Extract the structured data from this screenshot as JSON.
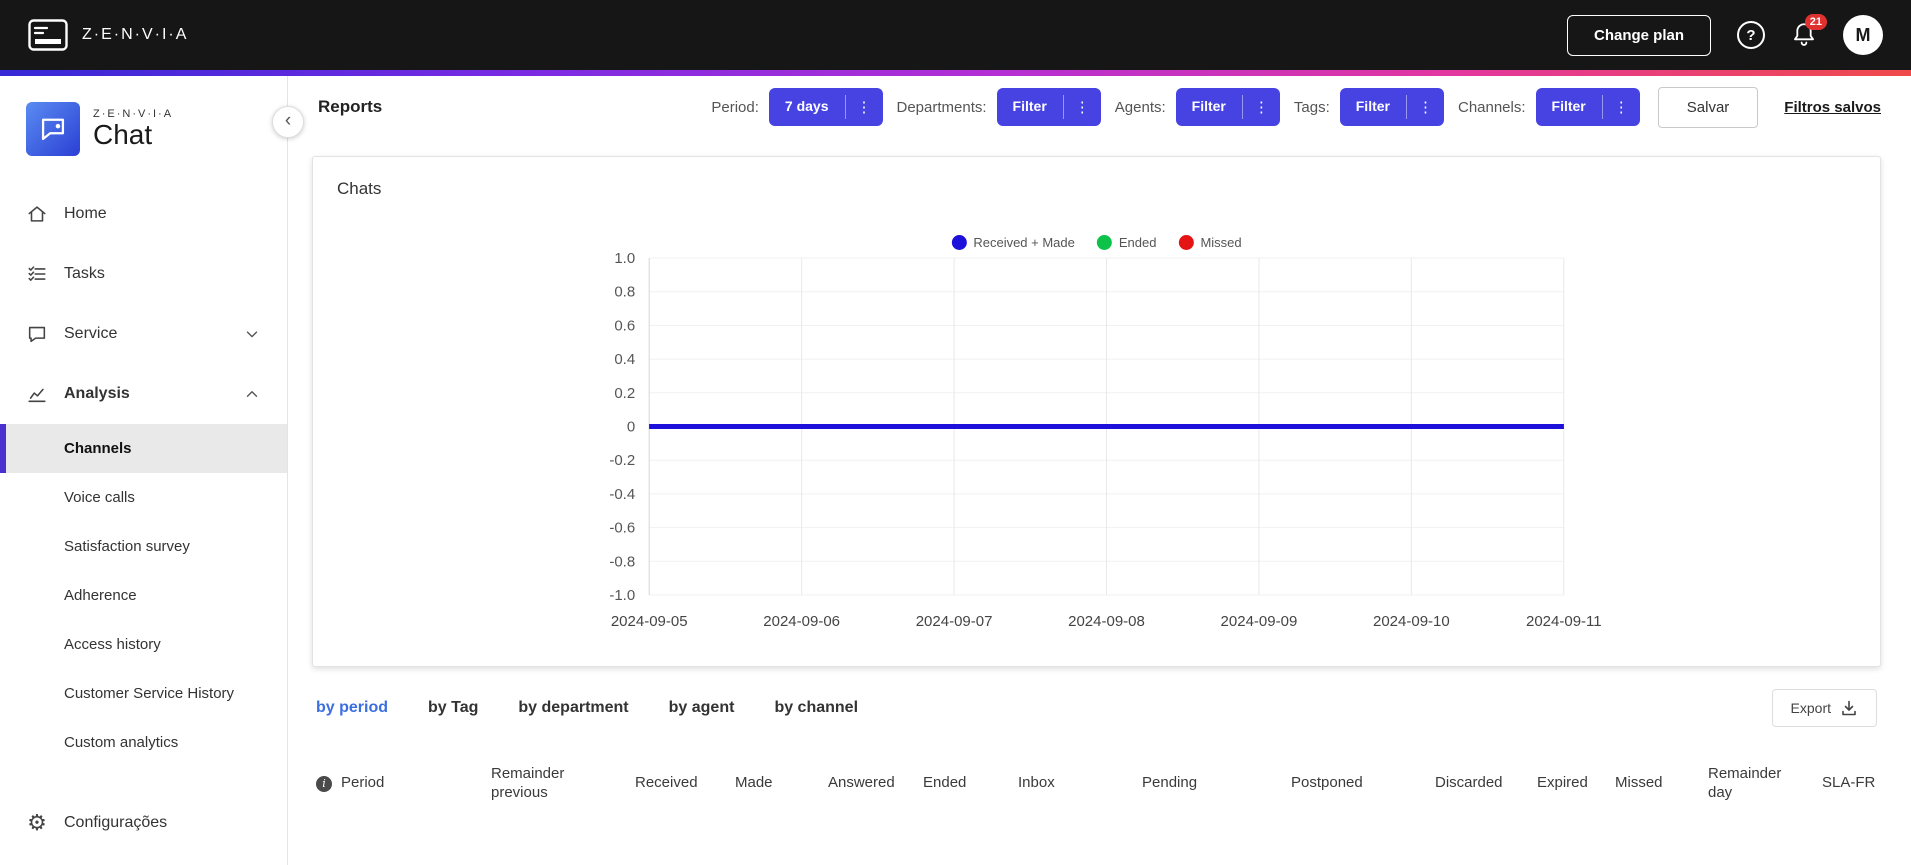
{
  "topbar": {
    "brand": "Z·E·N·V·I·A",
    "change_plan_label": "Change plan",
    "notification_count": "21",
    "avatar_initial": "M"
  },
  "sidebar": {
    "logo_brand": "Z·E·N·V·I·A",
    "logo_product": "Chat",
    "items": [
      {
        "label": "Home"
      },
      {
        "label": "Tasks"
      },
      {
        "label": "Service"
      },
      {
        "label": "Analysis"
      }
    ],
    "analysis_children": [
      "Channels",
      "Voice calls",
      "Satisfaction survey",
      "Adherence",
      "Access history",
      "Customer Service History",
      "Custom analytics"
    ],
    "active_child": "Channels",
    "settings_label": "Configurações"
  },
  "header": {
    "title": "Reports",
    "filters": [
      {
        "label": "Period:",
        "value": "7 days"
      },
      {
        "label": "Departments:",
        "value": "Filter"
      },
      {
        "label": "Agents:",
        "value": "Filter"
      },
      {
        "label": "Tags:",
        "value": "Filter"
      },
      {
        "label": "Channels:",
        "value": "Filter"
      }
    ],
    "save_label": "Salvar",
    "saved_filters_label": "Filtros salvos"
  },
  "chart_card": {
    "title": "Chats"
  },
  "chart_data": {
    "type": "line",
    "title": "Chats",
    "x": [
      "2024-09-05",
      "2024-09-06",
      "2024-09-07",
      "2024-09-08",
      "2024-09-09",
      "2024-09-10",
      "2024-09-11"
    ],
    "series": [
      {
        "name": "Received + Made",
        "color": "#1c10da",
        "values": [
          0,
          0,
          0,
          0,
          0,
          0,
          0
        ]
      },
      {
        "name": "Ended",
        "color": "#0cc249",
        "values": [
          0,
          0,
          0,
          0,
          0,
          0,
          0
        ]
      },
      {
        "name": "Missed",
        "color": "#e51414",
        "values": [
          0,
          0,
          0,
          0,
          0,
          0,
          0
        ]
      }
    ],
    "ylim": [
      -1.0,
      1.0
    ],
    "yticks": [
      "1.0",
      "0.8",
      "0.6",
      "0.4",
      "0.2",
      "0",
      "-0.2",
      "-0.4",
      "-0.6",
      "-0.8",
      "-1.0"
    ],
    "grid": true,
    "legend_position": "top"
  },
  "table": {
    "tabs": [
      "by period",
      "by Tag",
      "by department",
      "by agent",
      "by channel"
    ],
    "active_tab": "by period",
    "export_label": "Export",
    "columns": [
      "Period",
      "Remainder previous",
      "Received",
      "Made",
      "Answered",
      "Ended",
      "Inbox",
      "Pending",
      "Postponed",
      "Discarded",
      "Expired",
      "Missed",
      "Remainder day",
      "SLA-FR"
    ]
  }
}
